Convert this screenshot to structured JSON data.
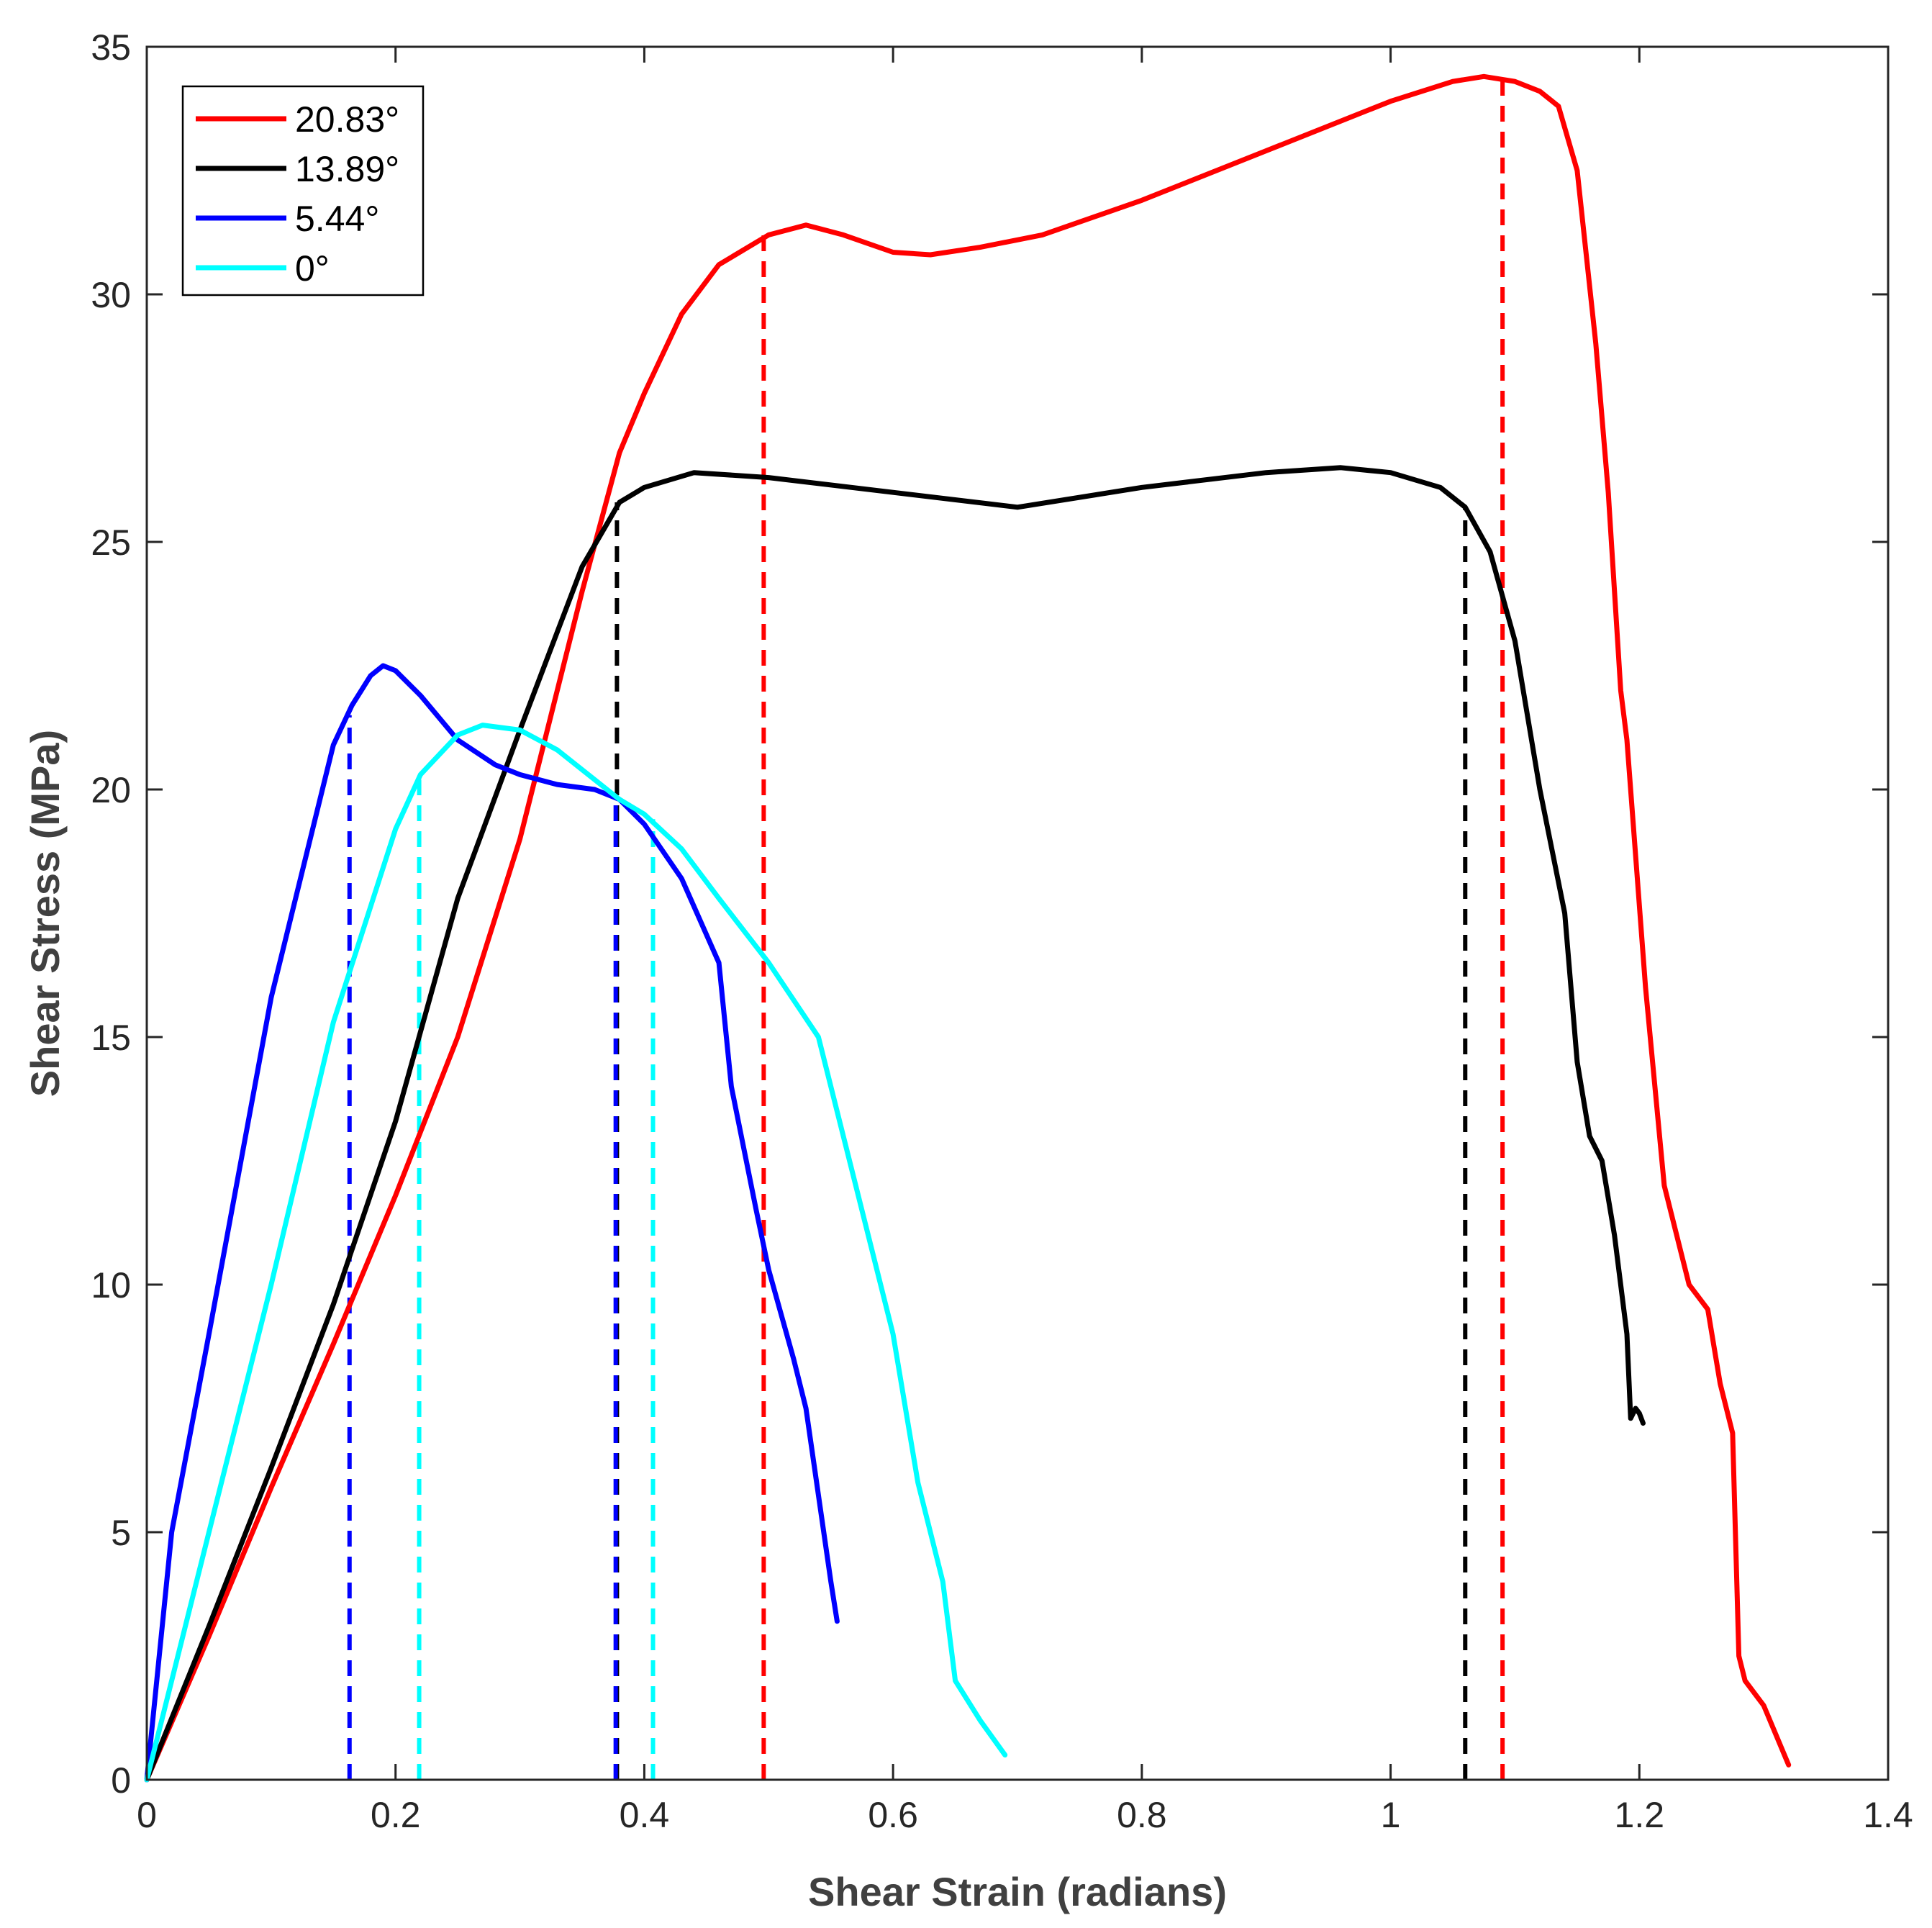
{
  "chart_data": {
    "type": "line",
    "title": "",
    "xlabel": "Shear Strain (radians)",
    "ylabel": "Shear Stress (MPa)",
    "xlim": [
      0,
      1.4
    ],
    "ylim": [
      0,
      35
    ],
    "xticks": [
      0,
      0.2,
      0.4,
      0.6,
      0.8,
      1,
      1.2,
      1.4
    ],
    "xtick_labels": [
      "0",
      "0.2",
      "0.4",
      "0.6",
      "0.8",
      "1",
      "1.2",
      "1.4"
    ],
    "yticks": [
      0,
      5,
      10,
      15,
      20,
      25,
      30,
      35
    ],
    "ytick_labels": [
      "0",
      "5",
      "10",
      "15",
      "20",
      "25",
      "30",
      "35"
    ],
    "grid": false,
    "legend_position": "top-left",
    "series": [
      {
        "name": "20.83°",
        "color": "#ff0000",
        "x": [
          0,
          0.05,
          0.1,
          0.15,
          0.2,
          0.25,
          0.3,
          0.35,
          0.38,
          0.4,
          0.43,
          0.46,
          0.5,
          0.53,
          0.56,
          0.6,
          0.63,
          0.67,
          0.72,
          0.8,
          0.9,
          1.0,
          1.05,
          1.075,
          1.1,
          1.12,
          1.135,
          1.15,
          1.165,
          1.175,
          1.185,
          1.19,
          1.205,
          1.22,
          1.24,
          1.255,
          1.265,
          1.275,
          1.28,
          1.285,
          1.3,
          1.32
        ],
        "y": [
          0,
          2.9,
          5.9,
          8.8,
          11.8,
          15,
          19,
          24,
          26.8,
          28,
          29.6,
          30.6,
          31.2,
          31.4,
          31.2,
          30.85,
          30.8,
          30.95,
          31.2,
          31.9,
          32.9,
          33.9,
          34.3,
          34.4,
          34.3,
          34.1,
          33.8,
          32.5,
          29,
          26,
          22,
          21,
          16,
          12,
          10,
          9.5,
          8,
          7,
          2.5,
          2,
          1.5,
          0.3
        ]
      },
      {
        "name": "13.89°",
        "color": "#000000",
        "x": [
          0,
          0.05,
          0.1,
          0.15,
          0.2,
          0.25,
          0.3,
          0.35,
          0.38,
          0.4,
          0.44,
          0.5,
          0.6,
          0.7,
          0.8,
          0.9,
          0.96,
          1.0,
          1.04,
          1.06,
          1.08,
          1.1,
          1.12,
          1.14,
          1.15,
          1.16,
          1.17,
          1.18,
          1.19,
          1.193,
          1.197,
          1.2,
          1.203
        ],
        "y": [
          0,
          3.1,
          6.3,
          9.6,
          13.3,
          17.8,
          21.2,
          24.5,
          25.8,
          26.1,
          26.4,
          26.3,
          26,
          25.7,
          26.1,
          26.4,
          26.5,
          26.4,
          26.1,
          25.7,
          24.8,
          23,
          20,
          17.5,
          14.5,
          13,
          12.5,
          11,
          9,
          7.3,
          7.5,
          7.4,
          7.2
        ]
      },
      {
        "name": "5.44°",
        "color": "#0000ff",
        "x": [
          0,
          0.02,
          0.05,
          0.1,
          0.15,
          0.165,
          0.18,
          0.19,
          0.2,
          0.22,
          0.25,
          0.28,
          0.3,
          0.33,
          0.36,
          0.38,
          0.4,
          0.43,
          0.46,
          0.47,
          0.49,
          0.5,
          0.51,
          0.52,
          0.53,
          0.55,
          0.555
        ],
        "y": [
          0,
          5,
          9,
          15.8,
          20.9,
          21.7,
          22.3,
          22.5,
          22.4,
          21.9,
          21,
          20.5,
          20.3,
          20.1,
          20,
          19.8,
          19.3,
          18.2,
          16.5,
          14,
          11.5,
          10.3,
          9.4,
          8.5,
          7.5,
          4,
          3.2
        ]
      },
      {
        "name": "0°",
        "color": "#00ffff",
        "x": [
          0,
          0.05,
          0.1,
          0.15,
          0.2,
          0.22,
          0.25,
          0.27,
          0.3,
          0.33,
          0.36,
          0.38,
          0.4,
          0.43,
          0.46,
          0.5,
          0.54,
          0.57,
          0.6,
          0.62,
          0.64,
          0.65,
          0.67,
          0.69
        ],
        "y": [
          0,
          5,
          10,
          15.3,
          19.2,
          20.3,
          21.1,
          21.3,
          21.2,
          20.8,
          20.2,
          19.8,
          19.5,
          18.8,
          17.8,
          16.5,
          15,
          12,
          9,
          6,
          4,
          2,
          1.2,
          0.5
        ]
      }
    ],
    "threshold_lines": [
      {
        "series": "20.83°",
        "color": "#ff0000",
        "x": 0.496,
        "y": 31.2
      },
      {
        "series": "20.83°",
        "color": "#ff0000",
        "x": 1.09,
        "y": 34.35
      },
      {
        "series": "13.89°",
        "color": "#000000",
        "x": 0.378,
        "y": 25.8
      },
      {
        "series": "13.89°",
        "color": "#000000",
        "x": 1.06,
        "y": 25.7
      },
      {
        "series": "5.44°",
        "color": "#0000ff",
        "x": 0.163,
        "y": 21.5
      },
      {
        "series": "5.44°",
        "color": "#0000ff",
        "x": 0.377,
        "y": 19.8
      },
      {
        "series": "0°",
        "color": "#00ffff",
        "x": 0.219,
        "y": 20.2
      },
      {
        "series": "0°",
        "color": "#00ffff",
        "x": 0.407,
        "y": 19.4
      }
    ]
  }
}
